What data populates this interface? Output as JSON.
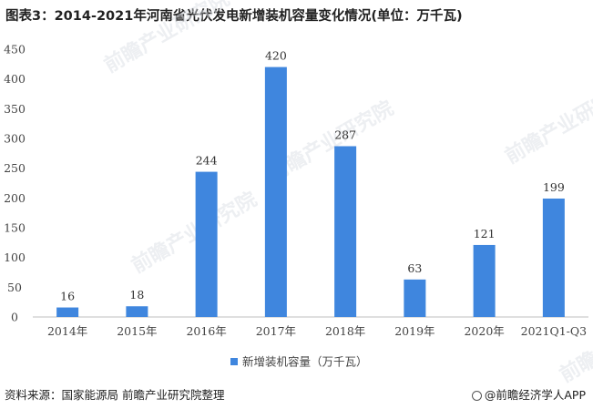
{
  "title": "图表3：2014-2021年河南省光伏发电新增装机容量变化情况(单位：万千瓦)",
  "source": "资料来源：国家能源局 前瞻产业研究院整理",
  "brand": "@前瞻经济学人APP",
  "watermark": "前瞻产业研究院",
  "colors": {
    "bar": "#3F86DE",
    "axis": "#bfbfbf",
    "text": "#444444"
  },
  "chart_data": {
    "type": "bar",
    "title": "图表3：2014-2021年河南省光伏发电新增装机容量变化情况(单位：万千瓦)",
    "categories": [
      "2014年",
      "2015年",
      "2016年",
      "2017年",
      "2018年",
      "2019年",
      "2020年",
      "2021Q1-Q3"
    ],
    "series": [
      {
        "name": "新增装机容量（万千瓦）",
        "values": [
          16,
          18,
          244,
          420,
          287,
          63,
          121,
          199
        ]
      }
    ],
    "ylim": [
      0,
      450
    ],
    "yticks": [
      0,
      50,
      100,
      150,
      200,
      250,
      300,
      350,
      400,
      450
    ],
    "grid": false,
    "legend": "bottom-center",
    "data_labels": true
  }
}
